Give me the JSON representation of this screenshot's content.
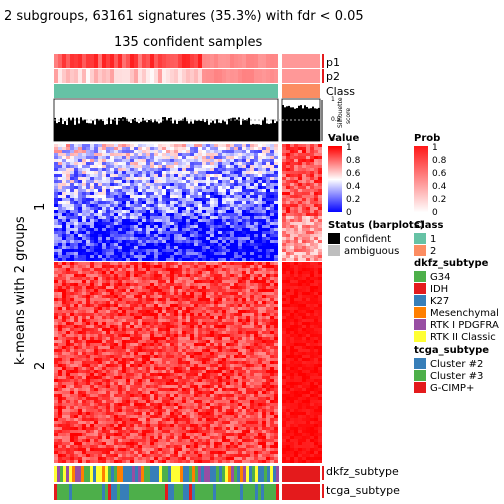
{
  "title": "2 subgroups, 63161 signatures (35.3%) with fdr < 0.05",
  "subtitle": "135 confident samples",
  "row_title": "k-means with 2 groups",
  "row_groups": [
    "1",
    "2"
  ],
  "annotation_labels": {
    "p1": "p1",
    "p2": "p2",
    "class": "Class",
    "silhouette": "Silhouette\nscore",
    "dkfz": "dkfz_subtype",
    "tcga": "tcga_subtype"
  },
  "silhouette_ticks": [
    "1",
    "0.5",
    "0"
  ],
  "legends": {
    "value": {
      "title": "Value",
      "ticks": [
        "1",
        "0.8",
        "0.6",
        "0.4",
        "0.2",
        "0"
      ]
    },
    "prob": {
      "title": "Prob",
      "ticks": [
        "1",
        "0.8",
        "0.6",
        "0.4",
        "0.2",
        "0"
      ]
    },
    "status": {
      "title": "Status (barplots)",
      "items": [
        {
          "label": "confident",
          "color": "#000000"
        },
        {
          "label": "ambiguous",
          "color": "#BEBEBE"
        }
      ]
    },
    "class": {
      "title": "Class",
      "items": [
        {
          "label": "1",
          "color": "#66C2A5"
        },
        {
          "label": "2",
          "color": "#FC8D62"
        }
      ]
    },
    "dkfz": {
      "title": "dkfz_subtype",
      "items": [
        {
          "label": "G34",
          "color": "#4DAF4A"
        },
        {
          "label": "IDH",
          "color": "#E41A1C"
        },
        {
          "label": "K27",
          "color": "#377EB8"
        },
        {
          "label": "Mesenchymal",
          "color": "#FF7F00"
        },
        {
          "label": "RTK I PDGFRA",
          "color": "#984EA3"
        },
        {
          "label": "RTK II Classic",
          "color": "#FFFF33"
        }
      ]
    },
    "tcga": {
      "title": "tcga_subtype",
      "items": [
        {
          "label": "Cluster #2",
          "color": "#377EB8"
        },
        {
          "label": "Cluster #3",
          "color": "#4DAF4A"
        },
        {
          "label": "G-CIMP+",
          "color": "#E41A1C"
        }
      ]
    }
  },
  "chart_data": {
    "type": "heatmap",
    "title": "2 subgroups, 63161 signatures (35.3%) with fdr < 0.05",
    "subtitle": "135 confident samples",
    "value_range": [
      0,
      1
    ],
    "colormap": {
      "0": "#0000FF",
      "0.5": "#FFFFFF",
      "1": "#FF0000"
    },
    "row_groups": [
      {
        "name": "1",
        "fraction": 0.36,
        "pattern": "group-2 samples high, group-1 samples mostly low (blue) with mixed values"
      },
      {
        "name": "2",
        "fraction": 0.64,
        "pattern": "both sample groups high (red), group-2 samples highest"
      }
    ],
    "column_groups": [
      {
        "class": "1",
        "samples_fraction": 0.86,
        "silhouette_approx": 0.65
      },
      {
        "class": "2",
        "samples_fraction": 0.14,
        "silhouette_approx": 0.85
      }
    ],
    "silhouette_ylim": [
      0,
      1
    ]
  }
}
